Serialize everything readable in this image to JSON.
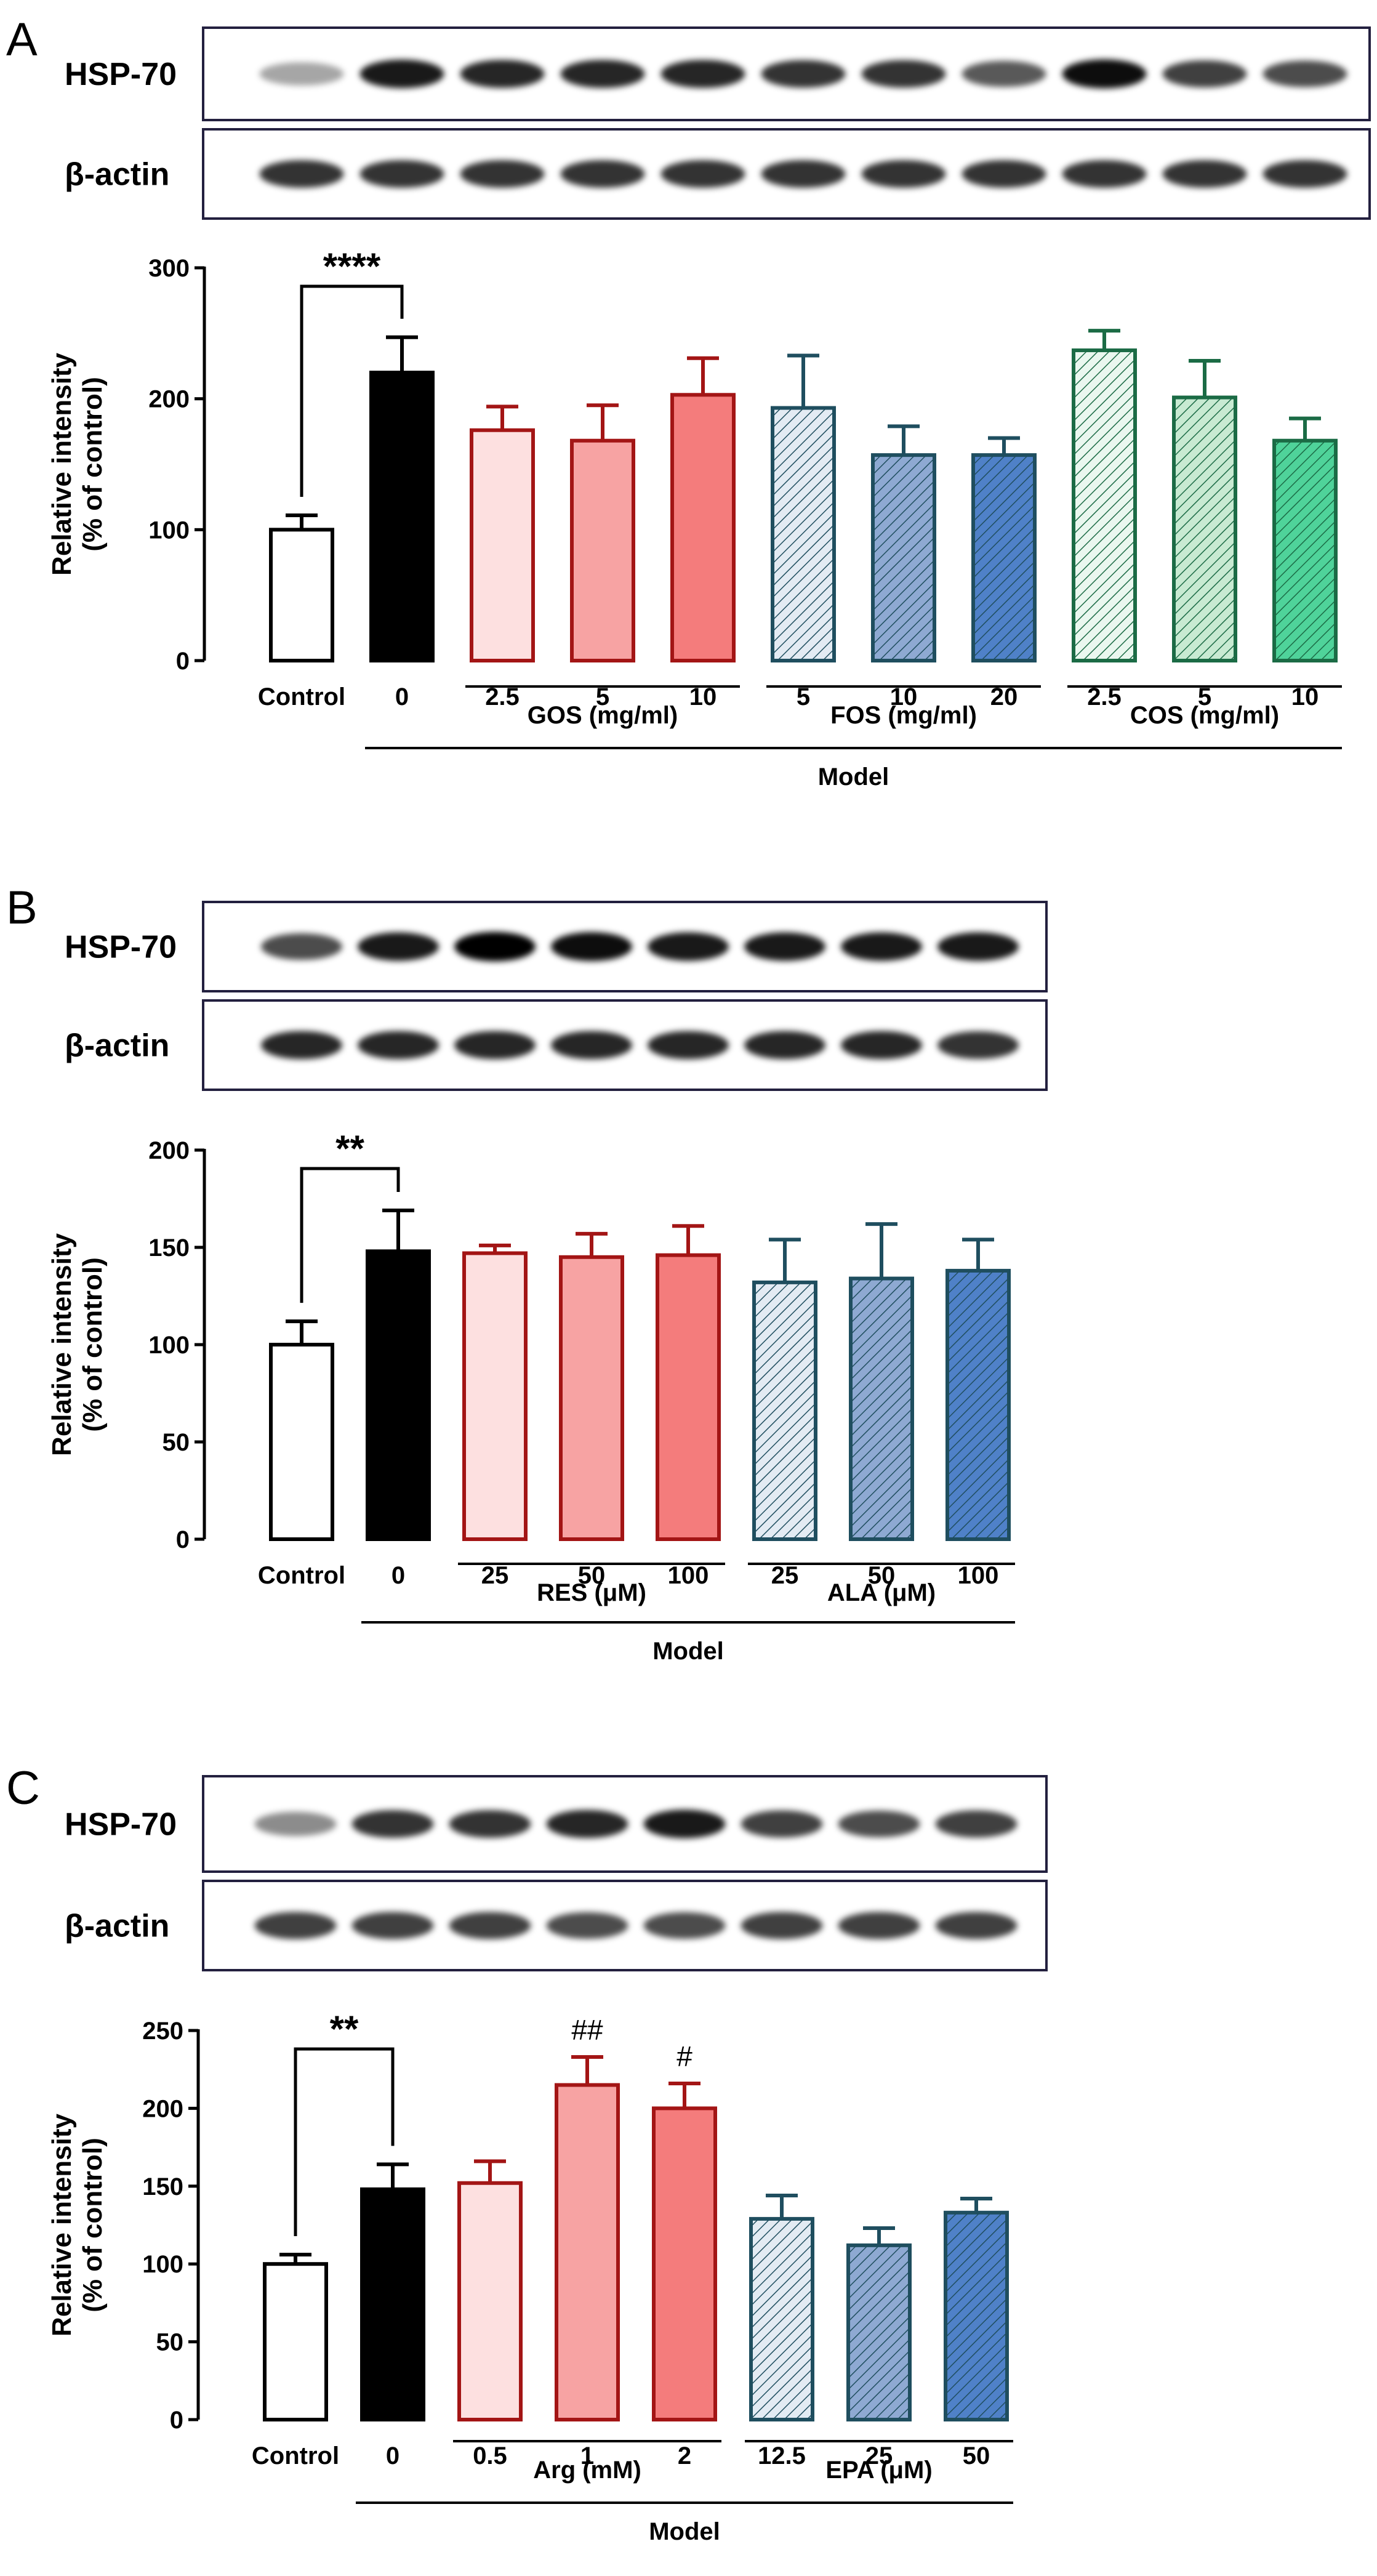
{
  "panels": [
    {
      "letter": "A",
      "blot_labels": [
        "HSP-70",
        "β-actin"
      ],
      "chart_data": {
        "type": "bar",
        "categories": [
          "Control",
          "0",
          "2.5",
          "5",
          "10",
          "5",
          "10",
          "20",
          "2.5",
          "5",
          "10"
        ],
        "values": [
          100,
          220,
          176,
          168,
          203,
          193,
          157,
          157,
          237,
          201,
          168
        ],
        "errors": [
          11,
          27,
          18,
          27,
          28,
          40,
          22,
          13,
          15,
          28,
          17
        ],
        "title": "",
        "xlabel": "",
        "ylabel": "Relative intensity\n(% of control)",
        "ylim": [
          0,
          300
        ],
        "yticks": [
          0,
          100,
          200,
          300
        ],
        "groups": [
          {
            "label": "GOS (mg/ml)",
            "from": 2,
            "to": 4
          },
          {
            "label": "FOS (mg/ml)",
            "from": 5,
            "to": 7
          },
          {
            "label": "COS (mg/ml)",
            "from": 8,
            "to": 10
          }
        ],
        "model_label": "Model",
        "significance": [
          {
            "text": "****",
            "bracket": [
              0,
              1
            ]
          }
        ],
        "grid": false,
        "legend": "none",
        "bar_styles": [
          "white",
          "black",
          "red1",
          "red2",
          "red3",
          "blue1",
          "blue2",
          "blue3",
          "green1",
          "green2",
          "green3"
        ]
      }
    },
    {
      "letter": "B",
      "blot_labels": [
        "HSP-70",
        "β-actin"
      ],
      "chart_data": {
        "type": "bar",
        "categories": [
          "Control",
          "0",
          "25",
          "50",
          "100",
          "25",
          "50",
          "100"
        ],
        "values": [
          100,
          148,
          147,
          145,
          146,
          132,
          134,
          138
        ],
        "errors": [
          12,
          21,
          4,
          12,
          15,
          22,
          28,
          16
        ],
        "title": "",
        "xlabel": "",
        "ylabel": "Relative intensity\n(% of control)",
        "ylim": [
          0,
          200
        ],
        "yticks": [
          0,
          50,
          100,
          150,
          200
        ],
        "groups": [
          {
            "label": "RES (μM)",
            "from": 2,
            "to": 4
          },
          {
            "label": "ALA (μM)",
            "from": 5,
            "to": 7
          }
        ],
        "model_label": "Model",
        "significance": [
          {
            "text": "**",
            "bracket": [
              0,
              1
            ]
          }
        ],
        "grid": false,
        "legend": "none",
        "bar_styles": [
          "white",
          "black",
          "red1",
          "red2",
          "red3",
          "blue1",
          "blue2",
          "blue3"
        ]
      }
    },
    {
      "letter": "C",
      "blot_labels": [
        "HSP-70",
        "β-actin"
      ],
      "chart_data": {
        "type": "bar",
        "categories": [
          "Control",
          "0",
          "0.5",
          "1",
          "2",
          "12.5",
          "25",
          "50"
        ],
        "values": [
          100,
          148,
          152,
          215,
          200,
          129,
          112,
          133
        ],
        "errors": [
          6,
          16,
          14,
          18,
          16,
          15,
          11,
          9
        ],
        "title": "",
        "xlabel": "",
        "ylabel": "Relative intensity\n(% of control)",
        "ylim": [
          0,
          250
        ],
        "yticks": [
          0,
          50,
          100,
          150,
          200,
          250
        ],
        "groups": [
          {
            "label": "Arg (mM)",
            "from": 2,
            "to": 4
          },
          {
            "label": "EPA (μM)",
            "from": 5,
            "to": 7
          }
        ],
        "model_label": "Model",
        "significance": [
          {
            "text": "**",
            "bracket": [
              0,
              1
            ]
          },
          {
            "text": "##",
            "bar": 3
          },
          {
            "text": "#",
            "bar": 4
          }
        ],
        "grid": false,
        "legend": "none",
        "bar_styles": [
          "white",
          "black",
          "red1",
          "red2",
          "red3",
          "blue1",
          "blue2",
          "blue3"
        ]
      }
    }
  ],
  "colors": {
    "red_edge": "#a31515",
    "blue_edge": "#1f4e5f",
    "green_edge": "#1b6b45"
  }
}
